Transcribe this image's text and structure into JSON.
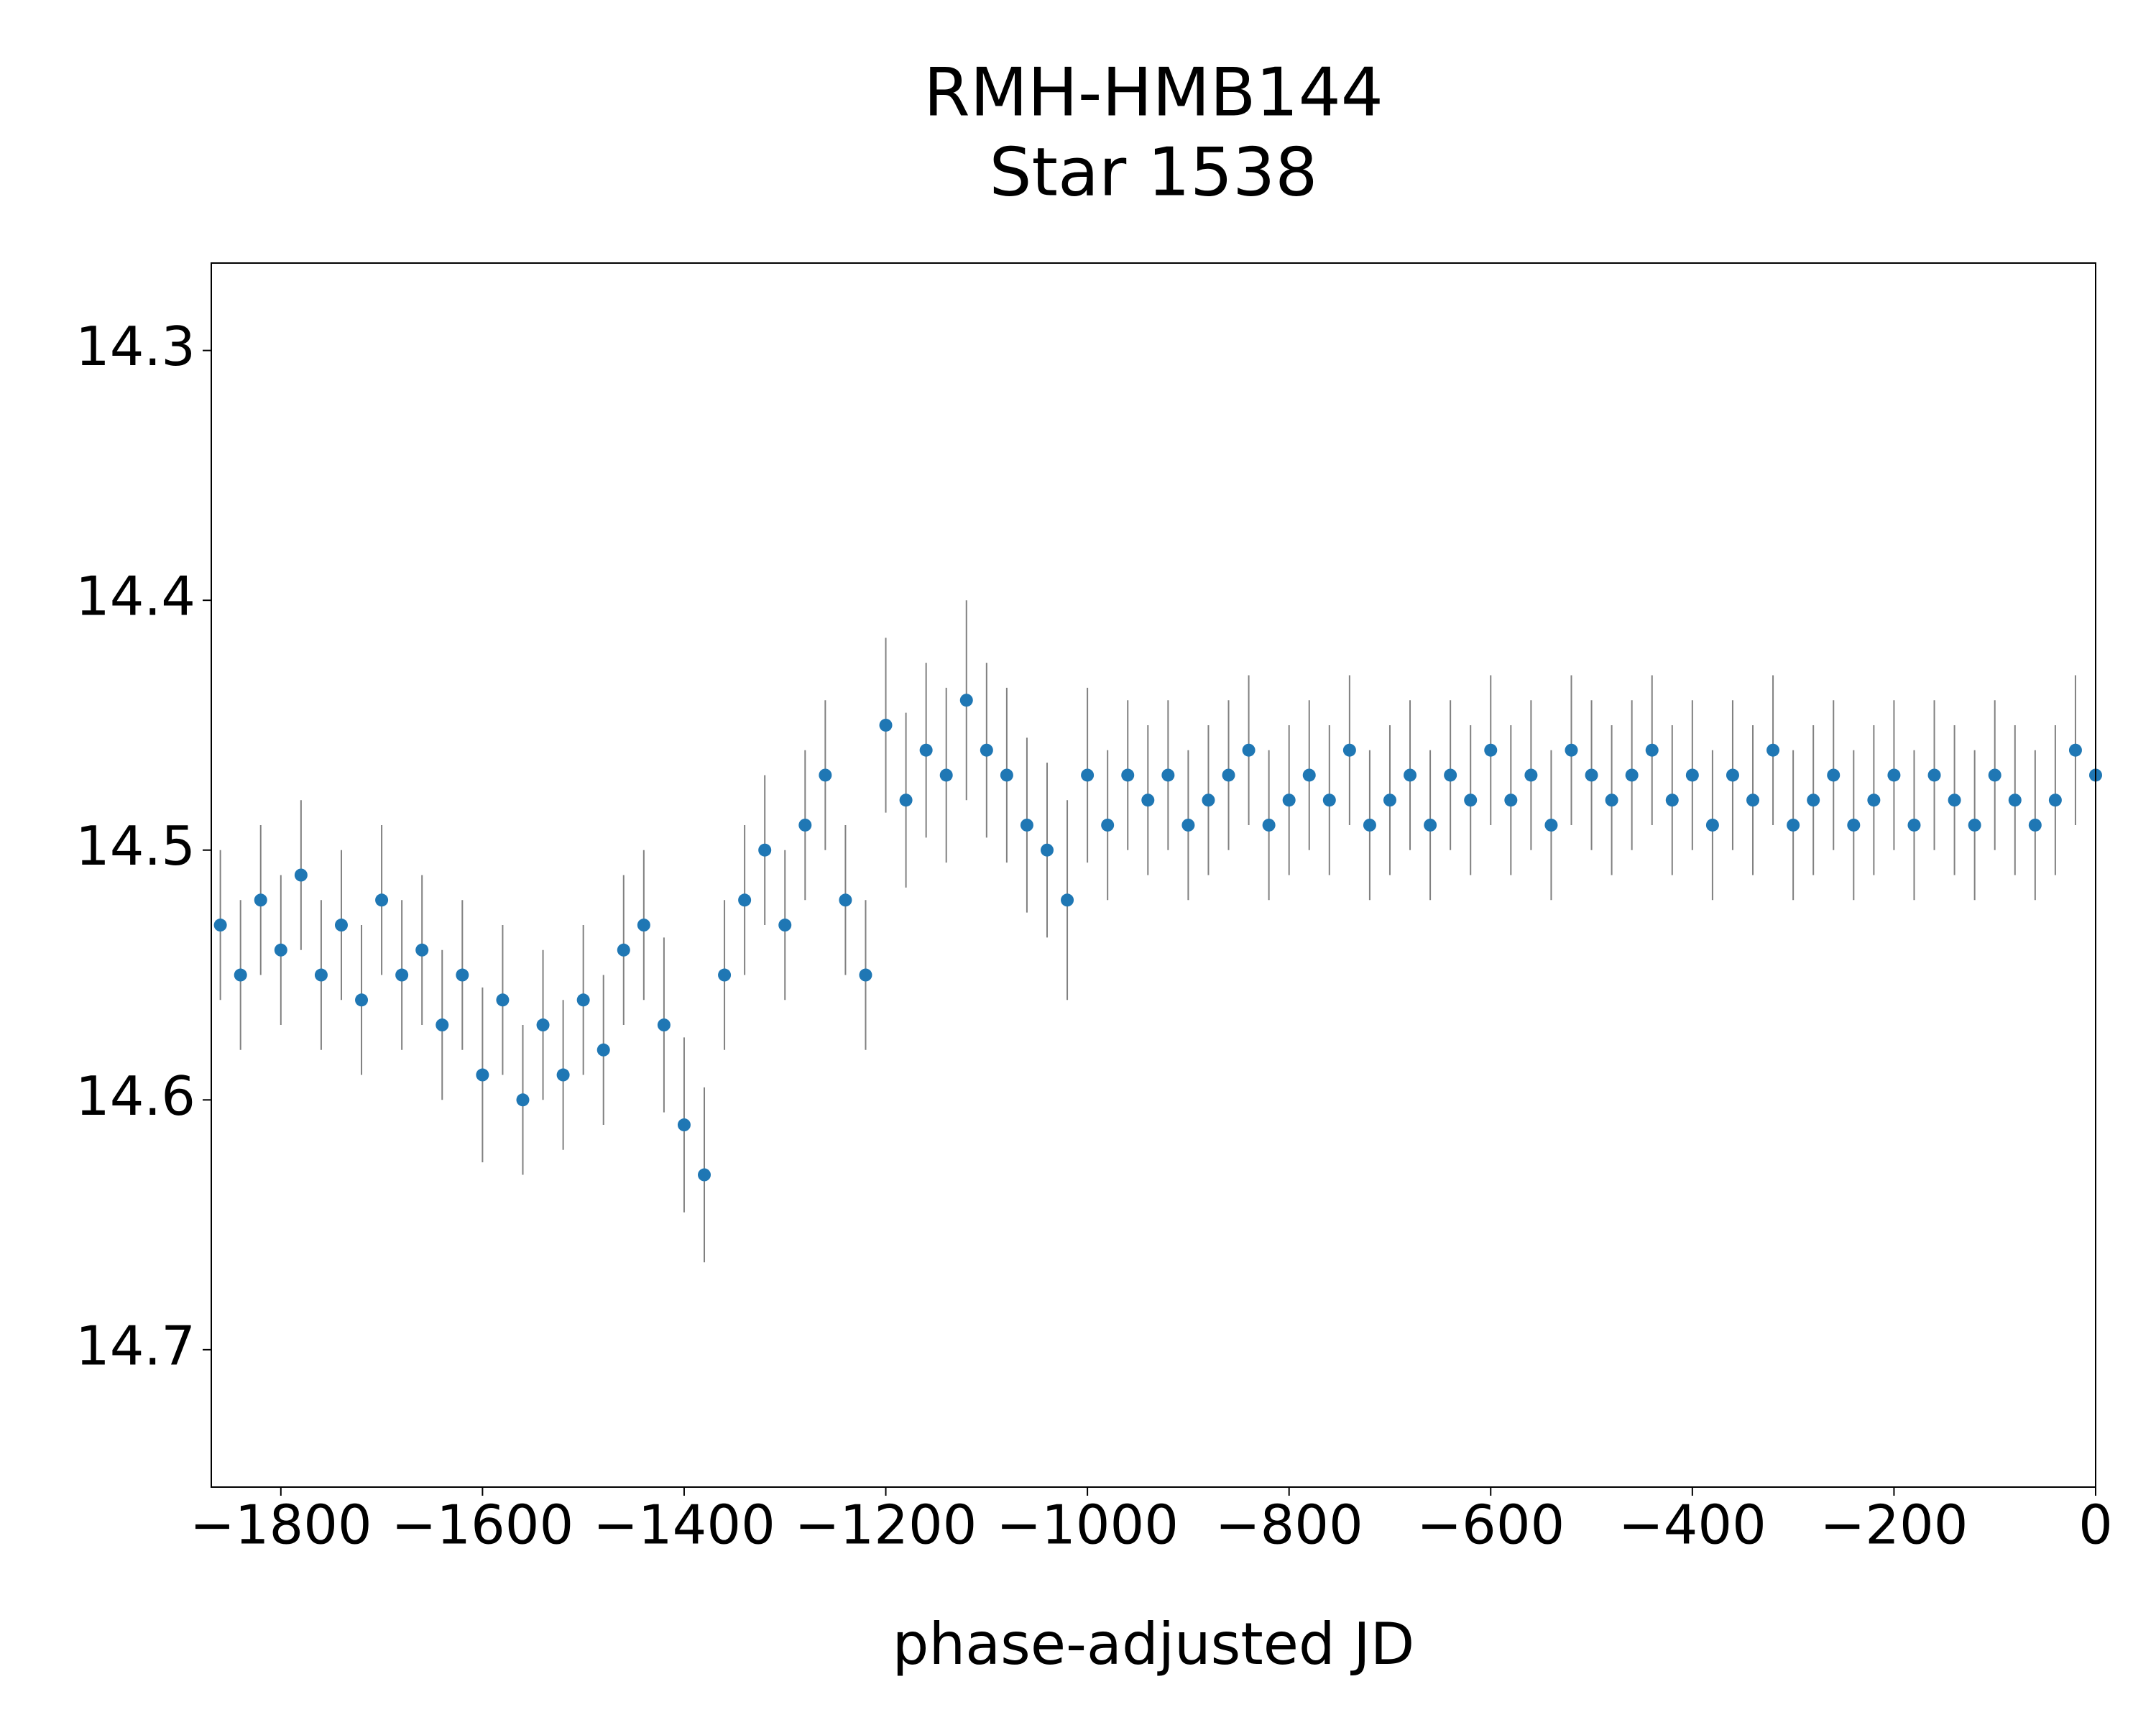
{
  "chart_data": {
    "type": "errorbar-scatter",
    "title": "RMH-HMB144",
    "subtitle": "Star 1538",
    "xlabel": "phase-adjusted JD",
    "xlim": [
      -1869,
      0
    ],
    "ylim": [
      14.265,
      14.755
    ],
    "y_inverted": true,
    "xticks": [
      {
        "value": -1800,
        "label": "−1800"
      },
      {
        "value": -1600,
        "label": "−1600"
      },
      {
        "value": -1400,
        "label": "−1400"
      },
      {
        "value": -1200,
        "label": "−1200"
      },
      {
        "value": -1000,
        "label": "−1000"
      },
      {
        "value": -800,
        "label": "−800"
      },
      {
        "value": -600,
        "label": "−600"
      },
      {
        "value": -400,
        "label": "−400"
      },
      {
        "value": -200,
        "label": "−200"
      },
      0
    ],
    "yticks": [
      14.3,
      14.4,
      14.5,
      14.6,
      14.7
    ],
    "grid": false,
    "color": "#1f77b4",
    "error_color": "#808080",
    "x": [
      -1860,
      -1840,
      -1820,
      -1800,
      -1780,
      -1760,
      -1740,
      -1720,
      -1700,
      -1680,
      -1660,
      -1640,
      -1620,
      -1600,
      -1580,
      -1560,
      -1540,
      -1520,
      -1500,
      -1480,
      -1460,
      -1440,
      -1420,
      -1400,
      -1380,
      -1360,
      -1340,
      -1320,
      -1300,
      -1280,
      -1260,
      -1240,
      -1220,
      -1200,
      -1180,
      -1160,
      -1140,
      -1120,
      -1100,
      -1080,
      -1060,
      -1040,
      -1020,
      -1000,
      -980,
      -960,
      -940,
      -920,
      -900,
      -880,
      -860,
      -840,
      -820,
      -800,
      -780,
      -760,
      -740,
      -720,
      -700,
      -680,
      -660,
      -640,
      -620,
      -600,
      -580,
      -560,
      -540,
      -520,
      -500,
      -480,
      -460,
      -440,
      -420,
      -400,
      -380,
      -360,
      -340,
      -320,
      -300,
      -280,
      -260,
      -240,
      -220,
      -200,
      -180,
      -160,
      -140,
      -120,
      -100,
      -80,
      -60,
      -40,
      -20,
      0
    ],
    "values": [
      14.53,
      14.55,
      14.52,
      14.54,
      14.51,
      14.55,
      14.53,
      14.56,
      14.52,
      14.55,
      14.54,
      14.57,
      14.55,
      14.59,
      14.56,
      14.6,
      14.57,
      14.59,
      14.56,
      14.58,
      14.54,
      14.53,
      14.57,
      14.61,
      14.63,
      14.55,
      14.52,
      14.5,
      14.53,
      14.49,
      14.47,
      14.52,
      14.55,
      14.45,
      14.48,
      14.46,
      14.47,
      14.44,
      14.46,
      14.47,
      14.49,
      14.5,
      14.52,
      14.47,
      14.49,
      14.47,
      14.48,
      14.47,
      14.49,
      14.48,
      14.47,
      14.46,
      14.49,
      14.48,
      14.47,
      14.48,
      14.46,
      14.49,
      14.48,
      14.47,
      14.49,
      14.47,
      14.48,
      14.46,
      14.48,
      14.47,
      14.49,
      14.46,
      14.47,
      14.48,
      14.47,
      14.46,
      14.48,
      14.47,
      14.49,
      14.47,
      14.48,
      14.46,
      14.49,
      14.48,
      14.47,
      14.49,
      14.48,
      14.47,
      14.49,
      14.47,
      14.48,
      14.49,
      14.47,
      14.48,
      14.49,
      14.48,
      14.46,
      14.47
    ],
    "errors": [
      0.03,
      0.03,
      0.03,
      0.03,
      0.03,
      0.03,
      0.03,
      0.03,
      0.03,
      0.03,
      0.03,
      0.03,
      0.03,
      0.035,
      0.03,
      0.03,
      0.03,
      0.03,
      0.03,
      0.03,
      0.03,
      0.03,
      0.035,
      0.035,
      0.035,
      0.03,
      0.03,
      0.03,
      0.03,
      0.03,
      0.03,
      0.03,
      0.03,
      0.035,
      0.035,
      0.035,
      0.035,
      0.04,
      0.035,
      0.035,
      0.035,
      0.035,
      0.04,
      0.035,
      0.03,
      0.03,
      0.03,
      0.03,
      0.03,
      0.03,
      0.03,
      0.03,
      0.03,
      0.03,
      0.03,
      0.03,
      0.03,
      0.03,
      0.03,
      0.03,
      0.03,
      0.03,
      0.03,
      0.03,
      0.03,
      0.03,
      0.03,
      0.03,
      0.03,
      0.03,
      0.03,
      0.03,
      0.03,
      0.03,
      0.03,
      0.03,
      0.03,
      0.03,
      0.03,
      0.03,
      0.03,
      0.03,
      0.03,
      0.03,
      0.03,
      0.03,
      0.03,
      0.03,
      0.03,
      0.03,
      0.03,
      0.03,
      0.03,
      0.03
    ]
  }
}
